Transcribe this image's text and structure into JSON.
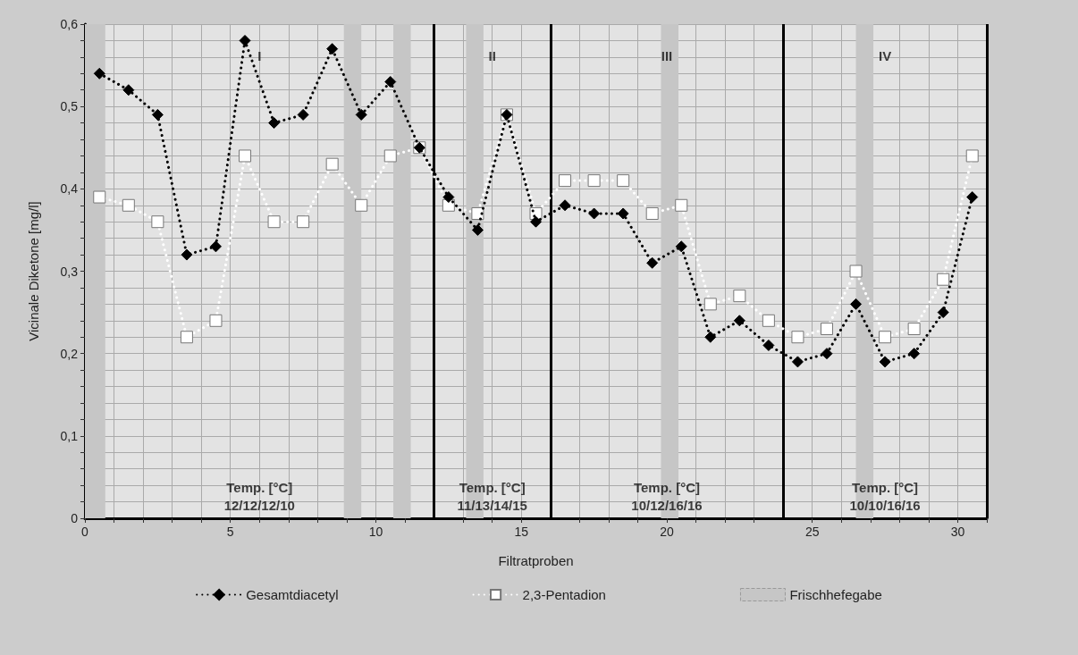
{
  "chart_data": {
    "type": "line",
    "xlabel": "Filtratproben",
    "ylabel": "Vicinale Diketone [mg/l]",
    "x": [
      0.5,
      1.5,
      2.5,
      3.5,
      4.5,
      5.5,
      6.5,
      7.5,
      8.5,
      9.5,
      10.5,
      11.5,
      12.5,
      13.5,
      14.5,
      15.5,
      16.5,
      17.5,
      18.5,
      19.5,
      20.5,
      21.5,
      22.5,
      23.5,
      24.5,
      25.5,
      26.5,
      27.5,
      28.5,
      29.5,
      30.5
    ],
    "series": [
      {
        "name": "Gesamtdiacetyl",
        "color": "#000000",
        "marker": "diamond",
        "line_style": "dotted",
        "values": [
          0.54,
          0.52,
          0.49,
          0.32,
          0.33,
          0.58,
          0.48,
          0.49,
          0.57,
          0.49,
          0.53,
          0.45,
          0.39,
          0.35,
          0.49,
          0.36,
          0.38,
          0.37,
          0.37,
          0.31,
          0.33,
          0.22,
          0.24,
          0.21,
          0.19,
          0.2,
          0.26,
          0.19,
          0.2,
          0.25,
          0.39
        ]
      },
      {
        "name": "2,3-Pentadion",
        "color": "#ffffff",
        "marker": "square",
        "line_style": "dotted",
        "values": [
          0.39,
          0.38,
          0.36,
          0.22,
          0.24,
          0.44,
          0.36,
          0.36,
          0.43,
          0.38,
          0.44,
          0.45,
          0.38,
          0.37,
          0.49,
          0.37,
          0.41,
          0.41,
          0.41,
          0.37,
          0.38,
          0.26,
          0.27,
          0.24,
          0.22,
          0.23,
          0.3,
          0.22,
          0.23,
          0.29,
          0.44
        ]
      }
    ],
    "xlim": [
      0,
      31
    ],
    "xticks": [
      0,
      {
        "value": 1,
        "label": null
      },
      {
        "value": 2,
        "label": null
      },
      {
        "value": 3,
        "label": null
      },
      {
        "value": 4,
        "label": null
      },
      5,
      {
        "value": 6,
        "label": null
      },
      {
        "value": 7,
        "label": null
      },
      {
        "value": 8,
        "label": null
      },
      {
        "value": 9,
        "label": null
      },
      10,
      {
        "value": 11,
        "label": null
      },
      {
        "value": 13,
        "label": null
      },
      {
        "value": 14,
        "label": null
      },
      15,
      {
        "value": 17,
        "label": null
      },
      {
        "value": 18,
        "label": null
      },
      {
        "value": 19,
        "label": null
      },
      20,
      {
        "value": 21,
        "label": null
      },
      {
        "value": 22,
        "label": null
      },
      {
        "value": 23,
        "label": null
      },
      25,
      {
        "value": 26,
        "label": null
      },
      {
        "value": 27,
        "label": null
      },
      {
        "value": 28,
        "label": null
      },
      {
        "value": 29,
        "label": null
      },
      30,
      {
        "value": 31,
        "label": null
      }
    ],
    "ylim": [
      0,
      0.6
    ],
    "yticks": [
      0,
      {
        "value": 0.02,
        "label": null
      },
      {
        "value": 0.04,
        "label": null
      },
      {
        "value": 0.06,
        "label": null
      },
      {
        "value": 0.08,
        "label": null
      },
      {
        "value": 0.1,
        "label": "0,1"
      },
      {
        "value": 0.12,
        "label": null
      },
      {
        "value": 0.14,
        "label": null
      },
      {
        "value": 0.16,
        "label": null
      },
      {
        "value": 0.18,
        "label": null
      },
      {
        "value": 0.2,
        "label": "0,2"
      },
      {
        "value": 0.22,
        "label": null
      },
      {
        "value": 0.24,
        "label": null
      },
      {
        "value": 0.26,
        "label": null
      },
      {
        "value": 0.28,
        "label": null
      },
      {
        "value": 0.3,
        "label": "0,3"
      },
      {
        "value": 0.32,
        "label": null
      },
      {
        "value": 0.34,
        "label": null
      },
      {
        "value": 0.36,
        "label": null
      },
      {
        "value": 0.38,
        "label": null
      },
      {
        "value": 0.4,
        "label": "0,4"
      },
      {
        "value": 0.42,
        "label": null
      },
      {
        "value": 0.44,
        "label": null
      },
      {
        "value": 0.46,
        "label": null
      },
      {
        "value": 0.48,
        "label": null
      },
      {
        "value": 0.5,
        "label": "0,5"
      },
      {
        "value": 0.52,
        "label": null
      },
      {
        "value": 0.54,
        "label": null
      },
      {
        "value": 0.56,
        "label": null
      },
      {
        "value": 0.58,
        "label": null
      },
      {
        "value": 0.6,
        "label": "0,6"
      }
    ],
    "grid": true,
    "legend": "bottom",
    "bands": [
      {
        "axis": "x",
        "from": 0,
        "to": 0.7,
        "label": "Frischhefegabe",
        "color": "#c6c6c6"
      },
      {
        "axis": "x",
        "from": 8.9,
        "to": 9.5,
        "color": "#c6c6c6"
      },
      {
        "axis": "x",
        "from": 10.6,
        "to": 11.2,
        "color": "#c6c6c6"
      },
      {
        "axis": "x",
        "from": 13.1,
        "to": 13.7,
        "color": "#c6c6c6"
      },
      {
        "axis": "x",
        "from": 19.8,
        "to": 20.4,
        "color": "#c6c6c6"
      },
      {
        "axis": "x",
        "from": 26.5,
        "to": 27.1,
        "color": "#c6c6c6"
      }
    ],
    "ref_lines": [
      {
        "axis": "x",
        "value": 12,
        "color": "#000000",
        "line_style": "solid"
      },
      {
        "axis": "x",
        "value": 16,
        "color": "#000000",
        "line_style": "solid"
      },
      {
        "axis": "x",
        "value": 24,
        "color": "#000000",
        "line_style": "solid"
      }
    ],
    "annotations": [
      "I",
      "II",
      "III",
      "IV",
      "Temp. [°C]\n12/12/12/10",
      "Temp. [°C]\n11/13/14/15",
      "Temp. [°C]\n10/12/16/16",
      "Temp. [°C]\n10/10/16/16"
    ]
  }
}
